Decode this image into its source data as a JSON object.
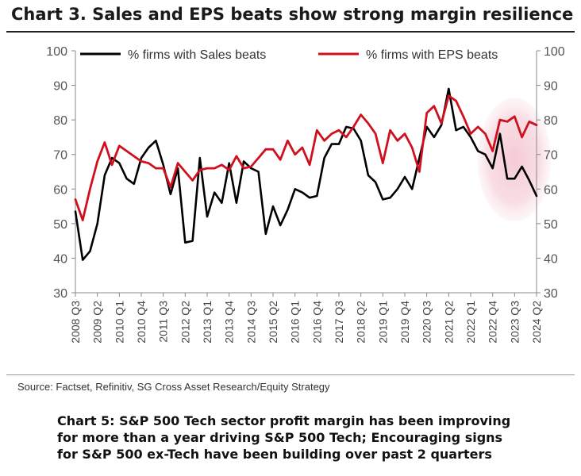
{
  "title": "Chart 3. Sales and EPS beats show strong margin resilience",
  "source": "Source: Factset, Refinitiv, SG Cross Asset Research/Equity Strategy",
  "caption_lines": [
    "Chart 5: S&P 500 Tech sector profit margin has been improving",
    "for more than a year driving S&P 500 Tech; Encouraging signs",
    "for S&P 500 ex-Tech have been building over past 2 quarters"
  ],
  "colors": {
    "sales": "#000000",
    "eps": "#d0101e",
    "highlight": "#f6d5dc",
    "axis": "#888888"
  },
  "chart_data": {
    "type": "line",
    "title": "Chart 3. Sales and EPS beats show strong margin resilience",
    "ylim": [
      30,
      100
    ],
    "y_ticks": [
      30,
      40,
      50,
      60,
      70,
      80,
      90,
      100
    ],
    "grid": false,
    "legend": "top",
    "x_tick_labels": [
      "2008 Q3",
      "2009 Q2",
      "2010 Q1",
      "2010 Q4",
      "2011 Q3",
      "2012 Q2",
      "2013 Q1",
      "2013 Q4",
      "2014 Q3",
      "2015 Q2",
      "2016 Q1",
      "2016 Q4",
      "2017 Q3",
      "2018 Q2",
      "2019 Q1",
      "2019 Q4",
      "2020 Q3",
      "2021 Q2",
      "2022 Q1",
      "2022 Q4",
      "2023 Q3",
      "2024 Q2"
    ],
    "highlight_region": {
      "label": "",
      "x_from": "2022 Q3",
      "x_to": "2024 Q2"
    },
    "x": [
      "2008 Q3",
      "2008 Q4",
      "2009 Q1",
      "2009 Q2",
      "2009 Q3",
      "2009 Q4",
      "2010 Q1",
      "2010 Q2",
      "2010 Q3",
      "2010 Q4",
      "2011 Q1",
      "2011 Q2",
      "2011 Q3",
      "2011 Q4",
      "2012 Q1",
      "2012 Q2",
      "2012 Q3",
      "2012 Q4",
      "2013 Q1",
      "2013 Q2",
      "2013 Q3",
      "2013 Q4",
      "2014 Q1",
      "2014 Q2",
      "2014 Q3",
      "2014 Q4",
      "2015 Q1",
      "2015 Q2",
      "2015 Q3",
      "2015 Q4",
      "2016 Q1",
      "2016 Q2",
      "2016 Q3",
      "2016 Q4",
      "2017 Q1",
      "2017 Q2",
      "2017 Q3",
      "2017 Q4",
      "2018 Q1",
      "2018 Q2",
      "2018 Q3",
      "2018 Q4",
      "2019 Q1",
      "2019 Q2",
      "2019 Q3",
      "2019 Q4",
      "2020 Q1",
      "2020 Q2",
      "2020 Q3",
      "2020 Q4",
      "2021 Q1",
      "2021 Q2",
      "2021 Q3",
      "2021 Q4",
      "2022 Q1",
      "2022 Q2",
      "2022 Q3",
      "2022 Q4",
      "2023 Q1",
      "2023 Q2",
      "2023 Q3",
      "2023 Q4",
      "2024 Q1",
      "2024 Q2"
    ],
    "series": [
      {
        "name": "% firms with Sales beats",
        "values": [
          53.5,
          39.5,
          42,
          50,
          64,
          69,
          67.5,
          63,
          61.5,
          69,
          72,
          74,
          67,
          58.5,
          66,
          44.5,
          45,
          69,
          52,
          59,
          56,
          67.5,
          56,
          68,
          66,
          65,
          47,
          55,
          49.5,
          54,
          60,
          59,
          57.5,
          58,
          69,
          73,
          73,
          78,
          77.5,
          74,
          64,
          62,
          57,
          57.5,
          60,
          63.5,
          60,
          69,
          78,
          75,
          78.5,
          89,
          77,
          78,
          75,
          71,
          70,
          66,
          76,
          63,
          63,
          66.5,
          62.5,
          58
        ]
      },
      {
        "name": "% firms with EPS beats",
        "values": [
          57,
          51,
          60,
          68,
          73.5,
          67,
          72.5,
          71,
          69.5,
          68,
          67.5,
          66,
          66,
          60.5,
          67.5,
          65,
          62.5,
          65.5,
          66,
          66,
          67,
          65.5,
          69.5,
          66,
          66.5,
          69,
          71.5,
          71.5,
          68.5,
          74,
          70,
          72,
          67,
          77,
          74,
          76,
          77,
          75,
          78,
          81.5,
          79,
          76,
          67.5,
          77,
          74,
          76,
          72,
          65,
          82,
          84,
          79,
          87,
          85.5,
          81,
          76,
          78,
          76,
          71,
          80,
          79.5,
          81,
          75,
          79.5,
          78.5
        ]
      }
    ]
  }
}
